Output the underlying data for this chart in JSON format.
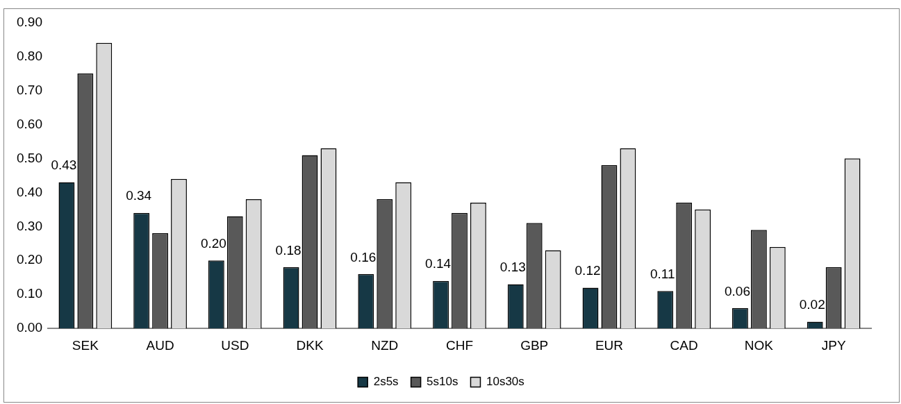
{
  "chart_data": {
    "type": "bar",
    "categories": [
      "SEK",
      "AUD",
      "USD",
      "DKK",
      "NZD",
      "CHF",
      "GBP",
      "EUR",
      "CAD",
      "NOK",
      "JPY"
    ],
    "series": [
      {
        "name": "2s5s",
        "color": "#163845",
        "values": [
          0.43,
          0.34,
          0.2,
          0.18,
          0.16,
          0.14,
          0.13,
          0.12,
          0.11,
          0.06,
          0.02
        ],
        "value_labels": [
          "0.43",
          "0.34",
          "0.20",
          "0.18",
          "0.16",
          "0.14",
          "0.13",
          "0.12",
          "0.11",
          "0.06",
          "0.02"
        ]
      },
      {
        "name": "5s10s",
        "color": "#595959",
        "values": [
          0.75,
          0.28,
          0.33,
          0.51,
          0.38,
          0.34,
          0.31,
          0.48,
          0.37,
          0.29,
          0.18
        ]
      },
      {
        "name": "10s30s",
        "color": "#d9d9d9",
        "values": [
          0.84,
          0.44,
          0.38,
          0.53,
          0.43,
          0.37,
          0.23,
          0.53,
          0.35,
          0.24,
          0.5
        ]
      }
    ],
    "ylim": [
      0,
      0.9
    ],
    "yticks": [
      {
        "value": 0,
        "label": "0.00"
      },
      {
        "value": 0.1,
        "label": "0.10"
      },
      {
        "value": 0.2,
        "label": "0.20"
      },
      {
        "value": 0.3,
        "label": "0.30"
      },
      {
        "value": 0.4,
        "label": "0.40"
      },
      {
        "value": 0.5,
        "label": "0.50"
      },
      {
        "value": 0.6,
        "label": "0.60"
      },
      {
        "value": 0.7,
        "label": "0.70"
      },
      {
        "value": 0.8,
        "label": "0.80"
      },
      {
        "value": 0.9,
        "label": "0.90"
      }
    ],
    "grid": false,
    "legend": "bottom"
  }
}
